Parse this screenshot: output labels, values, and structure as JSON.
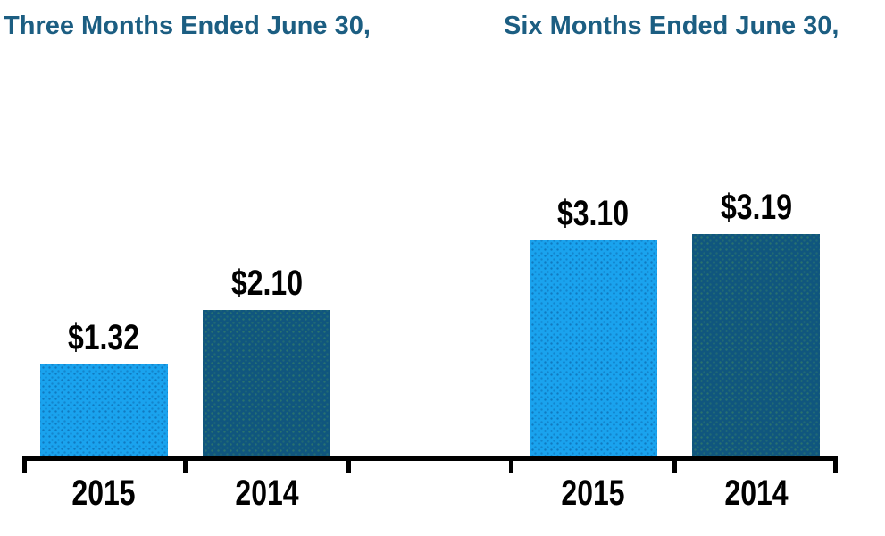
{
  "chart_data": {
    "type": "bar",
    "groups": [
      {
        "title": "Three Months Ended June 30,",
        "bars": [
          {
            "category": "2015",
            "value": 1.32,
            "label": "$1.32",
            "color_key": "light_blue"
          },
          {
            "category": "2014",
            "value": 2.1,
            "label": "$2.10",
            "color_key": "dark_blue"
          }
        ]
      },
      {
        "title": "Six Months Ended June 30,",
        "bars": [
          {
            "category": "2015",
            "value": 3.1,
            "label": "$3.10",
            "color_key": "light_blue"
          },
          {
            "category": "2014",
            "value": 3.19,
            "label": "$3.19",
            "color_key": "dark_blue"
          }
        ]
      }
    ],
    "colors": {
      "light_blue": "#1AA3EE",
      "dark_blue": "#10567E",
      "title_text": "#1C5E82",
      "label_text": "#000000",
      "axis": "#000000"
    },
    "axis": {
      "baseline_visible": true,
      "tick_count": 6,
      "value_axis_visible": false,
      "gridlines": false,
      "legend": false,
      "value_min": 0
    }
  }
}
